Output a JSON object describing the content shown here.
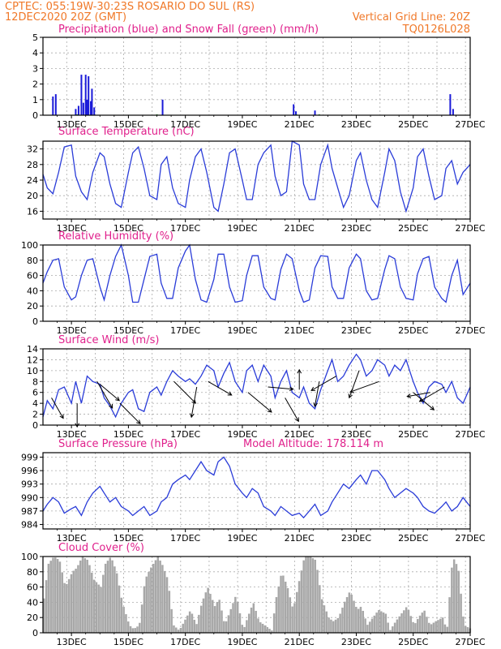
{
  "header": {
    "line1_left": "CPTEC:   055:19W-30:23S   ROSARIO DO SUL (RS)",
    "line2_left": "12DEC2020 20Z (GMT)",
    "line2_right": "Vertical Grid Line: 20Z",
    "line3_right": "TQ0126L028"
  },
  "colors": {
    "line": "#2a3cd8",
    "bar_precip": "#1a1ad8",
    "bar_snow": "#1a9a1a",
    "cloud": "#a8a8a8",
    "title": "#e0208c",
    "header": "#f07828",
    "grid": "#aaaaaa"
  },
  "x_axis": {
    "start_day": 12.0,
    "end_day": 27.0,
    "labels": [
      "13DEC",
      "15DEC",
      "17DEC",
      "19DEC",
      "21DEC",
      "23DEC",
      "25DEC",
      "27DEC"
    ],
    "label_days": [
      13,
      15,
      17,
      19,
      21,
      23,
      25,
      27
    ]
  },
  "chart_data": [
    {
      "type": "bar",
      "title": "Precipitation (blue) and Snow Fall (green) (mm/h)",
      "ylim": [
        0,
        5
      ],
      "yticks": [
        0,
        1,
        2,
        3,
        4,
        5
      ],
      "series": [
        {
          "name": "Precipitation (blue)",
          "values": [
            [
              12.35,
              1.2
            ],
            [
              12.45,
              1.35
            ],
            [
              13.15,
              0.4
            ],
            [
              13.25,
              0.6
            ],
            [
              13.35,
              2.6
            ],
            [
              13.42,
              0.8
            ],
            [
              13.5,
              2.6
            ],
            [
              13.55,
              1.0
            ],
            [
              13.6,
              2.5
            ],
            [
              13.68,
              0.9
            ],
            [
              13.72,
              1.7
            ],
            [
              13.8,
              0.5
            ],
            [
              16.2,
              1.0
            ],
            [
              20.8,
              0.7
            ],
            [
              20.88,
              0.25
            ],
            [
              21.55,
              0.3
            ],
            [
              26.3,
              1.35
            ],
            [
              26.4,
              0.4
            ]
          ]
        },
        {
          "name": "Snow Fall (green)",
          "values": [
            [
              13.2,
              0.05
            ],
            [
              16.0,
              0.05
            ],
            [
              20.9,
              0.05
            ],
            [
              21.7,
              0.05
            ]
          ]
        }
      ]
    },
    {
      "type": "line",
      "title": "Surface Temperature (nC)",
      "ylim": [
        14,
        34
      ],
      "yticks": [
        16,
        20,
        24,
        28,
        32
      ],
      "x": [
        12,
        12.15,
        12.35,
        12.55,
        12.75,
        13,
        13.15,
        13.35,
        13.55,
        13.75,
        14,
        14.15,
        14.35,
        14.55,
        14.75,
        15,
        15.15,
        15.35,
        15.55,
        15.75,
        16,
        16.15,
        16.35,
        16.55,
        16.75,
        17,
        17.15,
        17.35,
        17.55,
        17.75,
        18,
        18.15,
        18.35,
        18.55,
        18.75,
        19,
        19.15,
        19.35,
        19.55,
        19.75,
        20,
        20.15,
        20.35,
        20.55,
        20.75,
        21,
        21.15,
        21.35,
        21.55,
        21.75,
        22,
        22.15,
        22.35,
        22.55,
        22.75,
        23,
        23.15,
        23.35,
        23.55,
        23.75,
        24,
        24.15,
        24.35,
        24.55,
        24.75,
        25,
        25.15,
        25.35,
        25.55,
        25.75,
        26,
        26.15,
        26.35,
        26.55,
        26.75,
        27
      ],
      "series": [
        {
          "name": "Surface Temperature",
          "values": [
            25.5,
            22,
            20.5,
            26,
            32.5,
            33,
            25,
            21,
            19,
            26,
            31,
            30,
            23,
            18,
            17,
            26,
            31,
            32.5,
            27,
            20,
            19,
            28,
            30,
            22,
            18,
            17,
            24,
            30,
            32,
            26,
            17,
            16,
            23,
            31,
            32,
            24,
            19,
            19,
            28,
            31,
            33,
            25,
            20,
            21,
            34,
            33,
            23,
            19,
            19,
            28,
            33,
            27,
            22,
            17,
            20,
            29,
            31,
            24,
            19,
            17,
            26,
            32,
            29,
            21,
            16,
            22,
            30,
            32,
            25,
            19,
            20,
            27,
            29,
            23,
            26,
            28
          ]
        }
      ]
    },
    {
      "type": "line",
      "title": "Relative Humidity (%)",
      "ylim": [
        0,
        100
      ],
      "yticks": [
        0,
        20,
        40,
        60,
        80,
        100
      ],
      "x": [
        12,
        12.15,
        12.35,
        12.55,
        12.75,
        13,
        13.15,
        13.35,
        13.55,
        13.75,
        14,
        14.15,
        14.35,
        14.55,
        14.75,
        15,
        15.15,
        15.35,
        15.55,
        15.75,
        16,
        16.15,
        16.35,
        16.55,
        16.75,
        17,
        17.15,
        17.35,
        17.55,
        17.75,
        18,
        18.15,
        18.35,
        18.55,
        18.75,
        19,
        19.15,
        19.35,
        19.55,
        19.75,
        20,
        20.15,
        20.35,
        20.55,
        20.75,
        21,
        21.15,
        21.35,
        21.55,
        21.75,
        22,
        22.15,
        22.35,
        22.55,
        22.75,
        23,
        23.15,
        23.35,
        23.55,
        23.75,
        24,
        24.15,
        24.35,
        24.55,
        24.75,
        25,
        25.15,
        25.35,
        25.55,
        25.75,
        26,
        26.15,
        26.35,
        26.55,
        26.75,
        27
      ],
      "series": [
        {
          "name": "Relative Humidity",
          "values": [
            50,
            65,
            80,
            82,
            45,
            28,
            32,
            60,
            80,
            82,
            45,
            28,
            60,
            85,
            100,
            60,
            25,
            25,
            55,
            85,
            88,
            50,
            30,
            30,
            70,
            92,
            100,
            55,
            28,
            25,
            55,
            88,
            88,
            45,
            25,
            27,
            60,
            86,
            86,
            45,
            30,
            28,
            68,
            88,
            82,
            40,
            25,
            28,
            70,
            86,
            85,
            45,
            30,
            30,
            70,
            88,
            82,
            40,
            28,
            30,
            68,
            86,
            82,
            45,
            30,
            28,
            62,
            82,
            85,
            45,
            30,
            25,
            60,
            80,
            35,
            50
          ]
        }
      ]
    },
    {
      "type": "line",
      "title": "Surface Wind (m/s)",
      "ylim": [
        0,
        14
      ],
      "yticks": [
        0,
        2,
        4,
        6,
        8,
        10,
        12,
        14
      ],
      "x": [
        12,
        12.15,
        12.35,
        12.55,
        12.75,
        13,
        13.15,
        13.35,
        13.55,
        13.75,
        14,
        14.15,
        14.35,
        14.55,
        14.75,
        15,
        15.15,
        15.35,
        15.55,
        15.75,
        16,
        16.15,
        16.35,
        16.55,
        16.75,
        17,
        17.15,
        17.35,
        17.55,
        17.75,
        18,
        18.15,
        18.35,
        18.55,
        18.75,
        19,
        19.15,
        19.35,
        19.55,
        19.75,
        20,
        20.15,
        20.35,
        20.55,
        20.75,
        21,
        21.15,
        21.35,
        21.55,
        21.75,
        22,
        22.15,
        22.35,
        22.55,
        22.75,
        23,
        23.15,
        23.35,
        23.55,
        23.75,
        24,
        24.15,
        24.35,
        24.55,
        24.75,
        25,
        25.15,
        25.35,
        25.55,
        25.75,
        26,
        26.15,
        26.35,
        26.55,
        26.75,
        27
      ],
      "series": [
        {
          "name": "Surface Wind",
          "values": [
            1.5,
            4.5,
            3,
            6.5,
            7,
            4,
            8,
            4,
            9,
            8,
            7.5,
            5,
            3.5,
            1.5,
            4,
            6,
            6.5,
            3,
            2.5,
            6,
            7,
            5.5,
            8,
            10,
            9,
            8,
            8.5,
            7.5,
            9,
            11,
            10,
            7,
            9.5,
            11.5,
            8,
            6,
            10,
            11,
            8,
            11,
            9,
            5,
            8,
            10,
            6,
            5,
            7,
            4,
            3,
            6.5,
            10,
            12,
            8,
            9,
            11,
            13,
            12,
            9,
            10,
            12,
            11,
            9,
            11,
            10,
            12,
            8,
            6,
            4,
            7,
            8,
            7.5,
            6,
            8,
            5,
            4,
            7
          ]
        }
      ],
      "arrows": [
        [
          12.3,
          5,
          -60,
          0.5
        ],
        [
          13.2,
          4,
          -90,
          0.5
        ],
        [
          13.9,
          8,
          -60,
          0.9
        ],
        [
          14,
          7.5,
          -40,
          0.6
        ],
        [
          14.7,
          4,
          -45,
          0.8
        ],
        [
          16.6,
          8,
          -45,
          0.9
        ],
        [
          17.4,
          7,
          -100,
          0.9
        ],
        [
          17.8,
          8,
          -30,
          0.7
        ],
        [
          19.2,
          6,
          -40,
          0.9
        ],
        [
          19.9,
          7,
          -5,
          0.6
        ],
        [
          20.5,
          5,
          -60,
          0.7
        ],
        [
          21,
          6.5,
          90,
          0.3
        ],
        [
          21.7,
          8,
          -100,
          0.6
        ],
        [
          22.3,
          9,
          -150,
          0.8
        ],
        [
          23.1,
          10,
          -110,
          0.8
        ],
        [
          23.8,
          8,
          -160,
          0.9
        ],
        [
          25,
          6,
          -40,
          0.7
        ],
        [
          25.6,
          6,
          -170,
          0.5
        ],
        [
          26.1,
          7,
          -150,
          0.8
        ]
      ]
    },
    {
      "type": "line",
      "title": "Surface Pressure (hPa)",
      "annotation": "Model Altitude: 178.114  m",
      "ylim": [
        983,
        1000
      ],
      "yticks": [
        984,
        987,
        990,
        993,
        996,
        999
      ],
      "x": [
        12,
        12.15,
        12.35,
        12.55,
        12.75,
        13,
        13.15,
        13.35,
        13.55,
        13.75,
        14,
        14.15,
        14.35,
        14.55,
        14.75,
        15,
        15.15,
        15.35,
        15.55,
        15.75,
        16,
        16.15,
        16.35,
        16.55,
        16.75,
        17,
        17.15,
        17.35,
        17.55,
        17.75,
        18,
        18.15,
        18.35,
        18.55,
        18.75,
        19,
        19.15,
        19.35,
        19.55,
        19.75,
        20,
        20.15,
        20.35,
        20.55,
        20.75,
        21,
        21.15,
        21.35,
        21.55,
        21.75,
        22,
        22.15,
        22.35,
        22.55,
        22.75,
        23,
        23.15,
        23.35,
        23.55,
        23.75,
        24,
        24.15,
        24.35,
        24.55,
        24.75,
        25,
        25.15,
        25.35,
        25.55,
        25.75,
        26,
        26.15,
        26.35,
        26.55,
        26.75,
        27
      ],
      "series": [
        {
          "name": "Surface Pressure",
          "values": [
            987,
            988.5,
            990,
            989,
            986.5,
            987.5,
            988,
            986,
            989,
            991,
            992.5,
            991,
            989,
            990,
            988,
            987,
            986,
            987,
            988,
            986,
            987,
            989,
            990,
            993,
            994,
            995,
            994,
            996,
            998,
            996,
            995,
            998,
            999,
            997,
            993,
            991,
            990,
            992,
            991,
            988,
            987,
            986,
            988,
            987,
            986,
            986.5,
            985.5,
            987,
            988.5,
            986,
            987,
            989,
            991,
            993,
            992,
            994,
            995,
            993,
            996,
            996,
            994,
            992,
            990,
            991,
            992,
            991,
            990,
            988,
            987,
            986.5,
            988,
            989,
            987,
            988,
            990,
            988
          ]
        }
      ]
    },
    {
      "type": "area",
      "title": "Cloud Cover (%)",
      "ylim": [
        0,
        100
      ],
      "yticks": [
        0,
        20,
        40,
        60,
        80,
        100
      ],
      "x": [
        12,
        12.15,
        12.35,
        12.55,
        12.75,
        13,
        13.15,
        13.35,
        13.55,
        13.75,
        14,
        14.15,
        14.35,
        14.55,
        14.75,
        15,
        15.15,
        15.35,
        15.55,
        15.75,
        16,
        16.15,
        16.35,
        16.55,
        16.75,
        17,
        17.15,
        17.35,
        17.55,
        17.75,
        18,
        18.15,
        18.35,
        18.55,
        18.75,
        19,
        19.15,
        19.35,
        19.55,
        19.75,
        20,
        20.15,
        20.35,
        20.55,
        20.75,
        21,
        21.15,
        21.35,
        21.55,
        21.75,
        22,
        22.15,
        22.35,
        22.55,
        22.75,
        23,
        23.15,
        23.35,
        23.55,
        23.75,
        24,
        24.15,
        24.35,
        24.55,
        24.75,
        25,
        25.15,
        25.35,
        25.55,
        25.75,
        26,
        26.15,
        26.35,
        26.55,
        26.75,
        27
      ],
      "series": [
        {
          "name": "Cloud Cover",
          "values": [
            45,
            90,
            100,
            95,
            60,
            80,
            85,
            100,
            95,
            70,
            60,
            90,
            100,
            80,
            40,
            10,
            5,
            10,
            70,
            85,
            100,
            90,
            70,
            10,
            3,
            20,
            30,
            10,
            40,
            60,
            35,
            45,
            10,
            30,
            50,
            3,
            20,
            40,
            15,
            10,
            3,
            45,
            80,
            60,
            30,
            75,
            100,
            100,
            95,
            45,
            20,
            15,
            20,
            40,
            55,
            30,
            35,
            10,
            20,
            30,
            25,
            3,
            15,
            25,
            35,
            10,
            20,
            30,
            10,
            15,
            20,
            3,
            100,
            85,
            10,
            5
          ]
        }
      ]
    }
  ]
}
